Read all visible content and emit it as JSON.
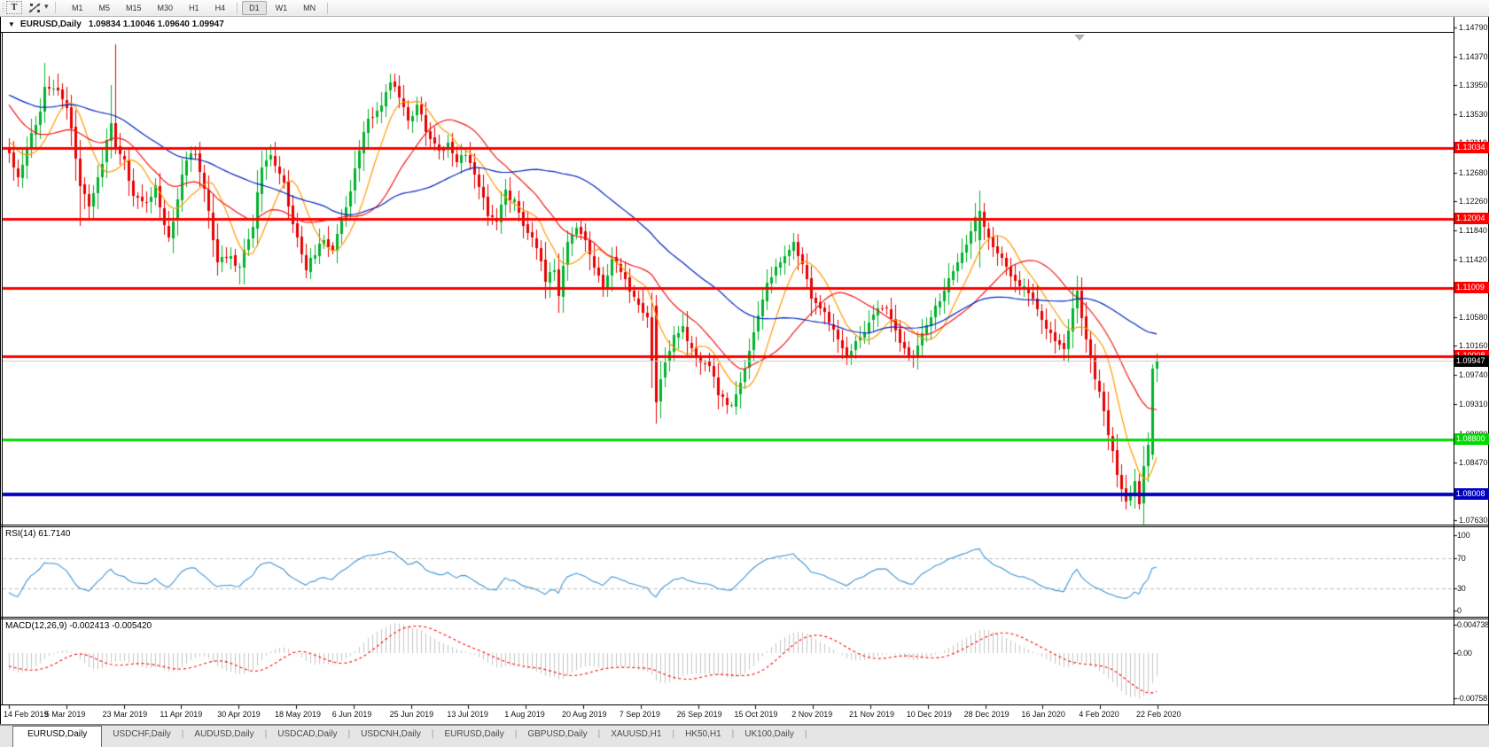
{
  "toolbar": {
    "text_tool_label": "T",
    "timeframes": [
      "M1",
      "M5",
      "M15",
      "M30",
      "H1",
      "H4",
      "D1",
      "W1",
      "MN"
    ],
    "active_timeframe": "D1"
  },
  "window": {
    "title_symbol": "EURUSD,Daily",
    "title_ohlc": "1.09834 1.10046 1.09640 1.09947"
  },
  "chart_data": {
    "type": "candlestick",
    "symbol": "EURUSD",
    "timeframe": "Daily",
    "last_candle": {
      "open": 1.09834,
      "high": 1.10046,
      "low": 1.0964,
      "close": 1.09947
    },
    "candle_count": 260,
    "y_axis_ticks": [
      "1.14790",
      "1.14370",
      "1.13950",
      "1.13530",
      "1.13110",
      "1.12680",
      "1.12260",
      "1.11840",
      "1.11420",
      "1.10580",
      "1.10160",
      "1.09740",
      "1.09310",
      "1.08880",
      "1.08470",
      "1.07630"
    ],
    "x_axis_dates": [
      "14 Feb 2019",
      "5 Mar 2019",
      "23 Mar 2019",
      "11 Apr 2019",
      "30 Apr 2019",
      "18 May 2019",
      "6 Jun 2019",
      "25 Jun 2019",
      "13 Jul 2019",
      "1 Aug 2019",
      "20 Aug 2019",
      "7 Sep 2019",
      "26 Sep 2019",
      "15 Oct 2019",
      "2 Nov 2019",
      "21 Nov 2019",
      "10 Dec 2019",
      "28 Dec 2019",
      "16 Jan 2020",
      "4 Feb 2020",
      "22 Feb 2020"
    ],
    "horizontal_lines": [
      {
        "price": 1.13034,
        "label": "1.13034",
        "color": "#fe0000",
        "width": 3
      },
      {
        "price": 1.12004,
        "label": "1.12004",
        "color": "#fe0000",
        "width": 3
      },
      {
        "price": 1.11009,
        "label": "1.11009",
        "color": "#fe0000",
        "width": 3
      },
      {
        "price": 1.10008,
        "label": "1.10008",
        "color": "#fe0000",
        "width": 3
      },
      {
        "price": 1.088,
        "label": "1.08800",
        "color": "#00d900",
        "width": 3
      },
      {
        "price": 1.08008,
        "label": "1.08008",
        "color": "#0000bf",
        "width": 4
      }
    ],
    "current_price": {
      "value": 1.09947,
      "label": "1.09947",
      "badge_color": "#000000",
      "line_color": "#c8c8c8"
    },
    "moving_averages": [
      {
        "period": 9,
        "color": "#ff9a00"
      },
      {
        "period": 21,
        "color": "#f21818"
      },
      {
        "period": 50,
        "color": "#0026c0"
      }
    ],
    "colors": {
      "bull": "#00b22c",
      "bear": "#e60000"
    },
    "prepend_anchors": [
      [
        -50,
        1.14
      ],
      [
        -44,
        1.145
      ],
      [
        -38,
        1.131
      ],
      [
        -30,
        1.1345
      ],
      [
        -23,
        1.148
      ],
      [
        -16,
        1.143
      ],
      [
        -8,
        1.133
      ],
      [
        -1,
        1.1298
      ]
    ],
    "price_anchors": [
      [
        0,
        1.1295
      ],
      [
        2,
        1.1262
      ],
      [
        5,
        1.132
      ],
      [
        7,
        1.136
      ],
      [
        8,
        1.139
      ],
      [
        11,
        1.1388
      ],
      [
        13,
        1.1365
      ],
      [
        14,
        1.133
      ],
      [
        16,
        1.1245
      ],
      [
        18,
        1.122
      ],
      [
        20,
        1.126
      ],
      [
        22,
        1.131
      ],
      [
        23,
        1.134
      ],
      [
        24,
        1.1305
      ],
      [
        26,
        1.1285
      ],
      [
        28,
        1.1235
      ],
      [
        31,
        1.1225
      ],
      [
        33,
        1.1248
      ],
      [
        35,
        1.119
      ],
      [
        36,
        1.1175
      ],
      [
        38,
        1.123
      ],
      [
        40,
        1.129
      ],
      [
        42,
        1.1295
      ],
      [
        44,
        1.124
      ],
      [
        46,
        1.1175
      ],
      [
        47,
        1.1135
      ],
      [
        49,
        1.115
      ],
      [
        52,
        1.113
      ],
      [
        55,
        1.119
      ],
      [
        57,
        1.128
      ],
      [
        59,
        1.1295
      ],
      [
        62,
        1.125
      ],
      [
        64,
        1.119
      ],
      [
        66,
        1.115
      ],
      [
        67,
        1.113
      ],
      [
        69,
        1.115
      ],
      [
        71,
        1.117
      ],
      [
        73,
        1.1155
      ],
      [
        75,
        1.12
      ],
      [
        77,
        1.1245
      ],
      [
        78,
        1.1276
      ],
      [
        80,
        1.1333
      ],
      [
        83,
        1.136
      ],
      [
        86,
        1.1395
      ],
      [
        88,
        1.138
      ],
      [
        90,
        1.134
      ],
      [
        92,
        1.1365
      ],
      [
        94,
        1.133
      ],
      [
        97,
        1.13
      ],
      [
        99,
        1.131
      ],
      [
        101,
        1.128
      ],
      [
        103,
        1.1295
      ],
      [
        106,
        1.125
      ],
      [
        108,
        1.121
      ],
      [
        110,
        1.1195
      ],
      [
        112,
        1.124
      ],
      [
        114,
        1.1225
      ],
      [
        117,
        1.118
      ],
      [
        119,
        1.116
      ],
      [
        121,
        1.111
      ],
      [
        123,
        1.1125
      ],
      [
        124,
        1.109
      ],
      [
        126,
        1.117
      ],
      [
        128,
        1.119
      ],
      [
        130,
        1.1165
      ],
      [
        132,
        1.1135
      ],
      [
        134,
        1.11
      ],
      [
        136,
        1.1145
      ],
      [
        139,
        1.111
      ],
      [
        142,
        1.108
      ],
      [
        144,
        1.106
      ],
      [
        146,
        1.0935
      ],
      [
        148,
        1.099
      ],
      [
        150,
        1.103
      ],
      [
        152,
        1.104
      ],
      [
        154,
        1.101
      ],
      [
        156,
        1.0995
      ],
      [
        158,
        1.099
      ],
      [
        160,
        1.095
      ],
      [
        162,
        1.0935
      ],
      [
        163,
        1.0927
      ],
      [
        165,
        1.0965
      ],
      [
        167,
        1.101
      ],
      [
        169,
        1.106
      ],
      [
        171,
        1.111
      ],
      [
        173,
        1.113
      ],
      [
        175,
        1.115
      ],
      [
        177,
        1.1162
      ],
      [
        179,
        1.113
      ],
      [
        181,
        1.109
      ],
      [
        184,
        1.106
      ],
      [
        186,
        1.104
      ],
      [
        189,
        1.1
      ],
      [
        191,
        1.102
      ],
      [
        194,
        1.105
      ],
      [
        196,
        1.107
      ],
      [
        198,
        1.107
      ],
      [
        200,
        1.104
      ],
      [
        202,
        1.101
      ],
      [
        204,
        1.0995
      ],
      [
        206,
        1.1035
      ],
      [
        208,
        1.106
      ],
      [
        210,
        1.108
      ],
      [
        212,
        1.111
      ],
      [
        214,
        1.1135
      ],
      [
        217,
        1.1185
      ],
      [
        219,
        1.1212
      ],
      [
        220,
        1.1185
      ],
      [
        222,
        1.116
      ],
      [
        224,
        1.114
      ],
      [
        226,
        1.1122
      ],
      [
        229,
        1.11
      ],
      [
        231,
        1.109
      ],
      [
        233,
        1.105
      ],
      [
        235,
        1.103
      ],
      [
        236,
        1.1023
      ],
      [
        238,
        1.101
      ],
      [
        240,
        1.107
      ],
      [
        241,
        1.1093
      ],
      [
        242,
        1.106
      ],
      [
        243,
        1.103
      ],
      [
        244,
        1.0998
      ],
      [
        245,
        1.097
      ],
      [
        246,
        1.0945
      ],
      [
        247,
        1.0917
      ],
      [
        248,
        1.089
      ],
      [
        249,
        1.086
      ],
      [
        250,
        1.083
      ],
      [
        251,
        1.081
      ],
      [
        252,
        1.0792
      ],
      [
        253,
        1.08
      ],
      [
        254,
        1.082
      ],
      [
        255,
        1.0786
      ],
      [
        256,
        1.0846
      ],
      [
        257,
        1.087
      ],
      [
        258,
        1.0983
      ],
      [
        259,
        1.09947
      ]
    ],
    "special_candles": {
      "8": {
        "h": 1.1428
      },
      "11": {
        "h": 1.1412
      },
      "16": {
        "l": 1.119
      },
      "23": {
        "h": 1.1395
      },
      "24": {
        "o": 1.134,
        "h": 1.1455,
        "l": 1.1295,
        "c": 1.1305
      },
      "36": {
        "l": 1.1167
      },
      "47": {
        "l": 1.1118
      },
      "52": {
        "l": 1.1105
      },
      "67": {
        "l": 1.1114
      },
      "86": {
        "h": 1.1412
      },
      "121": {
        "l": 1.1085
      },
      "146": {
        "o": 1.1075,
        "h": 1.109,
        "l": 1.0903,
        "c": 1.0935
      },
      "163": {
        "l": 1.0927
      },
      "189": {
        "l": 1.0988
      },
      "204": {
        "l": 1.0985
      },
      "219": {
        "o": 1.117,
        "h": 1.1242,
        "l": 1.113,
        "c": 1.1212
      },
      "252": {
        "l": 1.0778
      },
      "255": {
        "o": 1.082,
        "l": 1.0778,
        "c": 1.0786
      },
      "258": {
        "o": 1.0858,
        "h": 1.099,
        "l": 1.085,
        "c": 1.0983
      },
      "259": {
        "o": 1.09834,
        "h": 1.10046,
        "l": 1.0964,
        "c": 1.09947
      }
    },
    "rsi": {
      "label": "RSI(14) 61.7140",
      "period": 14,
      "value": 61.714,
      "levels": [
        70,
        30
      ],
      "scale_labels": [
        "100",
        "70",
        "30",
        "0"
      ],
      "line_color": "#3e96d3"
    },
    "macd": {
      "label": "MACD(12,26,9) -0.002413 -0.005420",
      "fast": 12,
      "slow": 26,
      "signal_period": 9,
      "value": -0.002413,
      "signal_value": -0.00542,
      "scale_labels": [
        "0.004738",
        "0.00",
        "-0.00758"
      ],
      "bar_color": "#c4c4c4",
      "signal_color": "#fe0000"
    }
  },
  "tabs": {
    "items": [
      "EURUSD,Daily",
      "USDCHF,Daily",
      "AUDUSD,Daily",
      "USDCAD,Daily",
      "USDCNH,Daily",
      "EURUSD,Daily",
      "GBPUSD,Daily",
      "XAUUSD,H1",
      "HK50,H1",
      "UK100,Daily"
    ],
    "active_index": 0
  }
}
